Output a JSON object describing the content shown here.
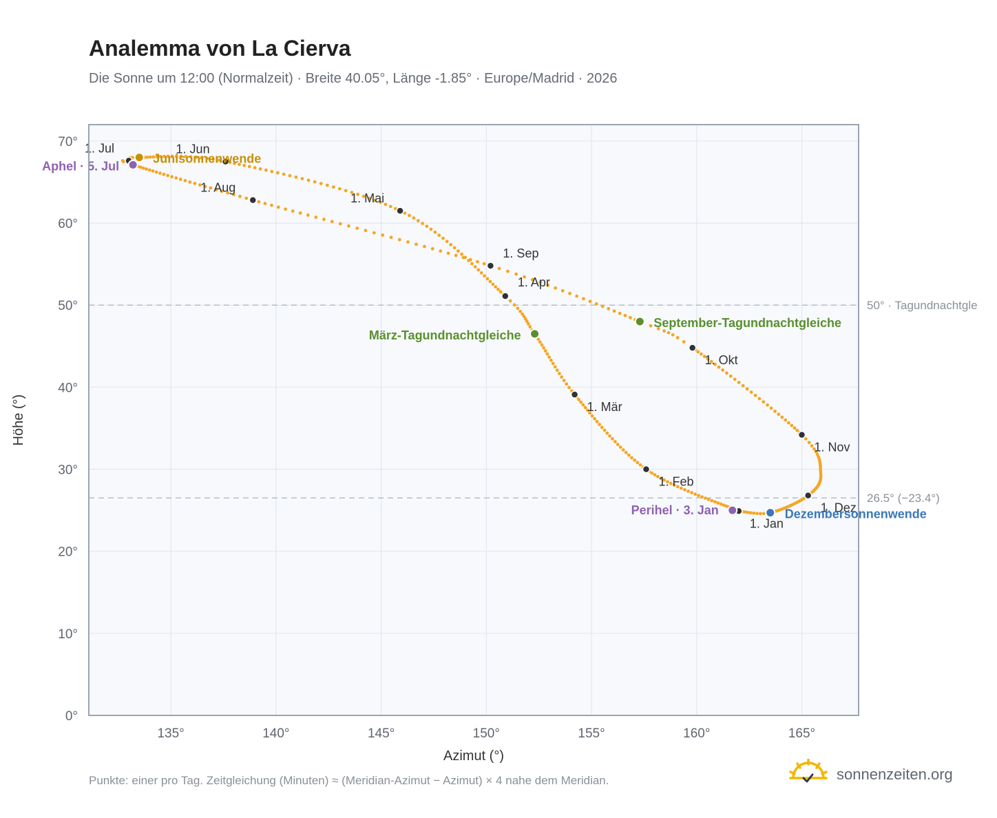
{
  "title": "Analemma von La Cierva",
  "subtitle": "Die Sonne um 12:00 (Normalzeit) · Breite 40.05°, Länge -1.85° · Europe/Madrid · 2026",
  "footnote": "Punkte: einer pro Tag. Zeitgleichung (Minuten) ≈ (Meridian-Azimut − Azimut) × 4 nahe dem Meridian.",
  "brand": {
    "name": "sonnenzeiten.org",
    "logo_icon": "sun-check-icon"
  },
  "colors": {
    "curve": "#f5a623",
    "month_marker": "#2e3138",
    "equinox": "#5a8f2e",
    "june_solstice": "#c8900a",
    "december_solstice": "#3a78b8",
    "apsis": "#8e62b0",
    "reference_line": "#b8c2cc",
    "plot_background": "#f7f9fc",
    "plot_border": "#9aa5b2"
  },
  "chart_data": {
    "type": "scatter",
    "xlabel": "Azimut (°)",
    "ylabel": "Höhe (°)",
    "xlim": [
      131.1,
      167.7
    ],
    "ylim": [
      0,
      72
    ],
    "x_ticks": [
      {
        "value": 135,
        "label": "135°"
      },
      {
        "value": 140,
        "label": "140°"
      },
      {
        "value": 145,
        "label": "145°"
      },
      {
        "value": 150,
        "label": "150°"
      },
      {
        "value": 155,
        "label": "155°"
      },
      {
        "value": 160,
        "label": "160°"
      },
      {
        "value": 165,
        "label": "165°"
      }
    ],
    "y_ticks": [
      {
        "value": 0,
        "label": "0°"
      },
      {
        "value": 10,
        "label": "10°"
      },
      {
        "value": 20,
        "label": "20°"
      },
      {
        "value": 30,
        "label": "30°"
      },
      {
        "value": 40,
        "label": "40°"
      },
      {
        "value": 50,
        "label": "50°"
      },
      {
        "value": 60,
        "label": "60°"
      },
      {
        "value": 70,
        "label": "70°"
      }
    ],
    "grid": true,
    "reference_lines": [
      {
        "y": 50,
        "label": "50° · Tagundnachtgle"
      },
      {
        "y": 26.5,
        "label": "26.5° (−23.4°)"
      }
    ],
    "series": [
      {
        "marker": "one point per day",
        "waypoints": [
          {
            "doy": 1,
            "x": 162.0,
            "y": 24.9
          },
          {
            "doy": 32,
            "x": 157.6,
            "y": 30.0
          },
          {
            "doy": 60,
            "x": 154.2,
            "y": 39.1
          },
          {
            "doy": 79,
            "x": 152.3,
            "y": 46.5
          },
          {
            "doy": 91,
            "x": 150.9,
            "y": 51.1
          },
          {
            "doy": 121,
            "x": 145.9,
            "y": 61.5
          },
          {
            "doy": 152,
            "x": 137.6,
            "y": 67.5
          },
          {
            "doy": 172,
            "x": 133.5,
            "y": 68.0
          },
          {
            "doy": 182,
            "x": 133.0,
            "y": 67.6
          },
          {
            "doy": 186,
            "x": 133.2,
            "y": 67.1
          },
          {
            "doy": 213,
            "x": 138.9,
            "y": 62.8
          },
          {
            "doy": 244,
            "x": 150.2,
            "y": 54.8
          },
          {
            "doy": 266,
            "x": 157.3,
            "y": 48.0
          },
          {
            "doy": 274,
            "x": 159.8,
            "y": 44.8
          },
          {
            "doy": 305,
            "x": 165.0,
            "y": 34.2
          },
          {
            "doy": 320,
            "x": 165.9,
            "y": 29.5
          },
          {
            "doy": 335,
            "x": 165.3,
            "y": 26.8
          },
          {
            "doy": 355,
            "x": 163.5,
            "y": 24.7
          },
          {
            "doy": 366,
            "x": 162.0,
            "y": 24.9
          }
        ]
      }
    ],
    "month_markers": [
      {
        "label": "1. Jan",
        "x": 162.0,
        "y": 24.9
      },
      {
        "label": "1. Feb",
        "x": 157.6,
        "y": 30.0
      },
      {
        "label": "1. Mär",
        "x": 154.2,
        "y": 39.1
      },
      {
        "label": "1. Apr",
        "x": 150.9,
        "y": 51.1
      },
      {
        "label": "1. Mai",
        "x": 145.9,
        "y": 61.5
      },
      {
        "label": "1. Jun",
        "x": 137.6,
        "y": 67.5
      },
      {
        "label": "1. Jul",
        "x": 133.0,
        "y": 67.6
      },
      {
        "label": "1. Aug",
        "x": 138.9,
        "y": 62.8
      },
      {
        "label": "1. Sep",
        "x": 150.2,
        "y": 54.8
      },
      {
        "label": "1. Okt",
        "x": 159.8,
        "y": 44.8
      },
      {
        "label": "1. Nov",
        "x": 165.0,
        "y": 34.2
      },
      {
        "label": "1. Dez",
        "x": 165.3,
        "y": 26.8
      }
    ],
    "events": [
      {
        "label": "Junisonnenwende",
        "x": 133.5,
        "y": 68.0,
        "color": "#c8900a"
      },
      {
        "label": "Aphel · 5. Jul",
        "x": 133.2,
        "y": 67.1,
        "color": "#8e62b0"
      },
      {
        "label": "März-Tagundnachtgleiche",
        "x": 152.3,
        "y": 46.5,
        "color": "#5a8f2e"
      },
      {
        "label": "September-Tagundnachtgleiche",
        "x": 157.3,
        "y": 48.0,
        "color": "#5a8f2e"
      },
      {
        "label": "Perihel · 3. Jan",
        "x": 161.7,
        "y": 25.0,
        "color": "#8e62b0"
      },
      {
        "label": "Dezembersonnenwende",
        "x": 163.5,
        "y": 24.7,
        "color": "#3a78b8"
      }
    ]
  }
}
